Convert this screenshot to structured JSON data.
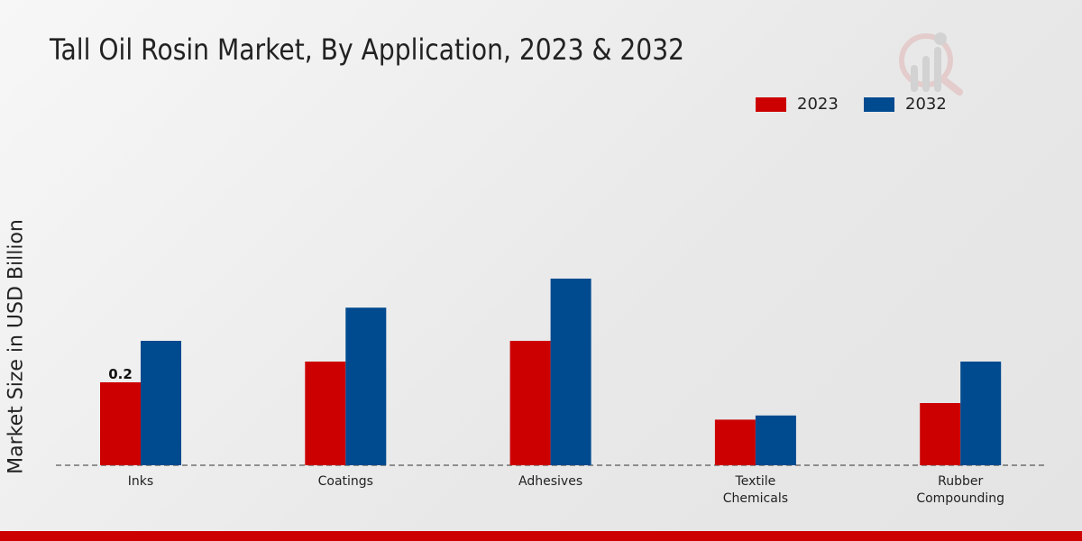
{
  "chart_data": {
    "type": "bar",
    "title": "Tall Oil Rosin Market, By Application, 2023 & 2032",
    "xlabel": "",
    "ylabel": "Market Size in USD Billion",
    "categories": [
      [
        "Inks"
      ],
      [
        "Coatings"
      ],
      [
        "Adhesives"
      ],
      [
        "Textile",
        "Chemicals"
      ],
      [
        "Rubber",
        "Compounding"
      ]
    ],
    "series": [
      {
        "name": "2023",
        "color": "#cc0000",
        "values": [
          0.2,
          0.25,
          0.3,
          0.11,
          0.15
        ]
      },
      {
        "name": "2032",
        "color": "#004a8f",
        "values": [
          0.3,
          0.38,
          0.45,
          0.12,
          0.25
        ]
      }
    ],
    "data_labels": [
      {
        "series": 0,
        "index": 0,
        "text": "0.2"
      }
    ],
    "ylim": [
      0,
      0.9
    ],
    "grid": false,
    "legend": "top-right"
  }
}
